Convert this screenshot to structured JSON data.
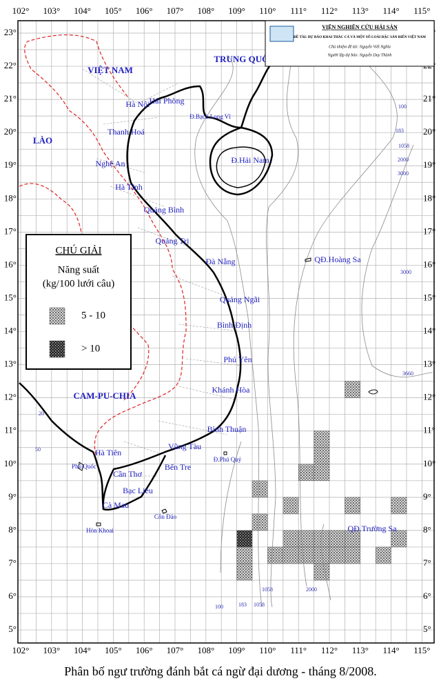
{
  "title": "Phân bố ngư trường đánh bắt cá ngừ đại dương - tháng 8/2008.",
  "header": {
    "institute": "VIỆN NGHIÊN CỨU HẢI SẢN",
    "project": "ĐỀ TÀI: DỰ BÁO KHAI THÁC CÁ VÀ MỘT SỐ LOÀI ĐẶC SẢN BIỂN VIỆT NAM",
    "leader": "Chủ nhiệm đề tài: Nguyễn Viết Nghĩa",
    "forecaster": "Người lập dự báo: Nguyễn Duy Thành"
  },
  "lon_labels": [
    "102°",
    "103°",
    "104°",
    "105°",
    "106°",
    "107°",
    "108°",
    "109°",
    "110°",
    "111°",
    "112°",
    "113°",
    "114°",
    "115°"
  ],
  "lat_labels": [
    "23°",
    "22°",
    "21°",
    "20°",
    "19°",
    "18°",
    "17°",
    "16°",
    "15°",
    "14°",
    "13°",
    "12°",
    "11°",
    "10°",
    "9°",
    "8°",
    "7°",
    "6°",
    "5°"
  ],
  "countries": [
    "VIỆT NAM",
    "TRUNG QUỐC",
    "LÀO",
    "CAM-PU-CHIA"
  ],
  "places": [
    "Hà Nội",
    "Hải Phòng",
    "Đ.Bạch Long Vĩ",
    "Thanh Hoá",
    "Nghệ An",
    "Hà Tĩnh",
    "Quảng Bình",
    "Quảng Trị",
    "Đà Nẵng",
    "Quảng Ngãi",
    "Bình Định",
    "Phú Yên",
    "Khánh Hòa",
    "Bình Thuận",
    "Vũng Tàu",
    "Bến Tre",
    "Đ.Phú Quý",
    "Hà Tiên",
    "Phú Quốc",
    "Cần Thơ",
    "Bạc Liêu",
    "Cà Mau",
    "Hòn Khoai",
    "Côn Đảo",
    "Đ.Hải Nam",
    "QĐ.Hoàng Sa",
    "QĐ.Trường Sa"
  ],
  "depths": [
    "50",
    "100",
    "183",
    "1058",
    "2000",
    "3000",
    "3000",
    "3660",
    "20",
    "50",
    "100",
    "183",
    "1058",
    "1058",
    "2000"
  ],
  "legend": {
    "title": "CHÚ GIẢI",
    "subtitle": "Năng suất",
    "unit": "(kg/100 lưới câu)",
    "items": [
      {
        "label": "5 - 10",
        "cells": [
          [
            112.5,
            12
          ],
          [
            111.5,
            10.5
          ],
          [
            111.5,
            10
          ],
          [
            111,
            9.5
          ],
          [
            111.5,
            9.5
          ],
          [
            109.5,
            9
          ],
          [
            110.5,
            8.5
          ],
          [
            112.5,
            8.5
          ],
          [
            114,
            8.5
          ],
          [
            109.5,
            8
          ],
          [
            110.5,
            7.5
          ],
          [
            111,
            7.5
          ],
          [
            111.5,
            7.5
          ],
          [
            112,
            7.5
          ],
          [
            112.5,
            7.5
          ],
          [
            114,
            7.5
          ],
          [
            109,
            7
          ],
          [
            110,
            7
          ],
          [
            110.5,
            7
          ],
          [
            111,
            7
          ],
          [
            111.5,
            7
          ],
          [
            112,
            7
          ],
          [
            112.5,
            7
          ],
          [
            113.5,
            7
          ],
          [
            109,
            6.5
          ],
          [
            111.5,
            6.5
          ]
        ]
      },
      {
        "label": "> 10",
        "cells": [
          [
            109,
            7.5
          ]
        ]
      }
    ]
  }
}
